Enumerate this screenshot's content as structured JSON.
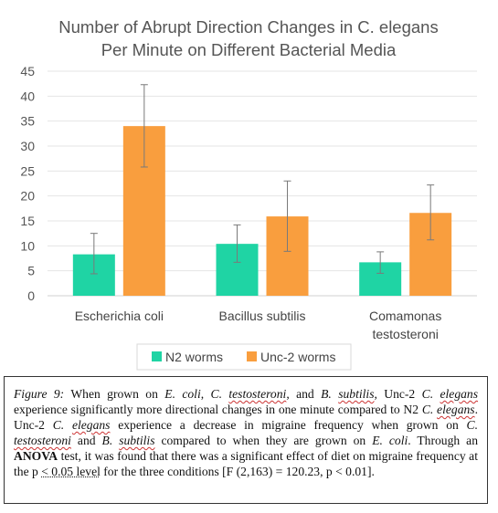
{
  "chart_data": {
    "type": "bar",
    "title_lines": [
      "Number of Abrupt Direction Changes in C. elegans",
      "Per Minute on Different Bacterial Media"
    ],
    "categories": [
      [
        "Escherichia coli"
      ],
      [
        "Bacillus subtilis"
      ],
      [
        "Comamonas",
        "testosteroni"
      ]
    ],
    "series": [
      {
        "name": "N2 worms",
        "color": "#1fd4a4",
        "values": [
          8.3,
          10.4,
          6.7
        ],
        "err_low": [
          4.4,
          6.7,
          4.5
        ],
        "err_high": [
          12.5,
          14.2,
          8.8
        ]
      },
      {
        "name": "Unc-2 worms",
        "color": "#f99e3e",
        "values": [
          34.0,
          15.9,
          16.6
        ],
        "err_low": [
          25.8,
          8.9,
          11.2
        ],
        "err_high": [
          42.3,
          23.0,
          22.2
        ]
      }
    ],
    "ylim": [
      0,
      45
    ],
    "yticks": [
      "0",
      "5",
      "10",
      "15",
      "20",
      "25",
      "30",
      "35",
      "40",
      "45"
    ],
    "grid": true,
    "legend": "bottom"
  },
  "caption": {
    "label": "Figure 9:",
    "t1": " When grown on ",
    "e_coli": "E. coli",
    "t2": ", ",
    "c_test_1": "C. ",
    "c_test_2": "testosteroni",
    "t3": ", and ",
    "b_sub_1": "B. ",
    "b_sub_2": "subtilis",
    "t4": ", Unc-2 ",
    "c_el_1": "C. ",
    "c_el_2": "elegans",
    "t5": " experience significantly more directional changes in one minute compared to N2 ",
    "c_el_3": "C. ",
    "c_el_4": "elegans",
    "t6": ". Unc-2 ",
    "c_el_5": "C. ",
    "c_el_6": "elegans",
    "t7": " experience a decrease in migraine frequency when grown on ",
    "c_test_3": "C. ",
    "c_test_4": "testosteroni",
    "t8": " and ",
    "b_sub_3": "B. ",
    "b_sub_4": "subtilis",
    "t9": " compared to when they are grown on ",
    "e_coli_2": "E. coli",
    "t10": ". Through an ",
    "anova": "ANOVA",
    "t11": " test, it was found that there was a significant effect of diet on migraine frequency at the p ",
    "level": "< 0.05 level",
    "t12": " for the three conditions [F (2,163) = 120.23, p < 0.01]."
  }
}
